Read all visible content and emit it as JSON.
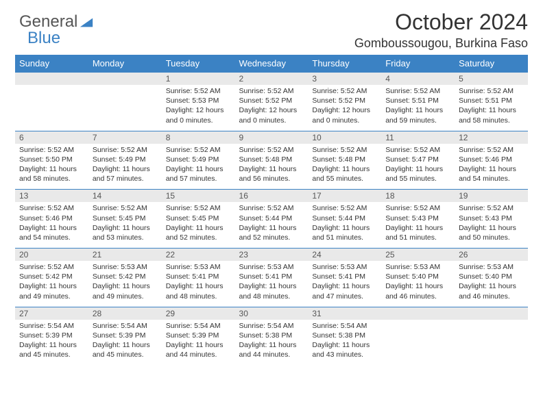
{
  "brand": {
    "part1": "General",
    "part2": "Blue",
    "logo_color": "#3b82c4"
  },
  "header": {
    "title": "October 2024",
    "location": "Gomboussougou, Burkina Faso"
  },
  "theme": {
    "header_bg": "#3b82c4",
    "header_fg": "#ffffff",
    "daynum_bg": "#e9e9e9",
    "border": "#3b82c4",
    "text": "#333333"
  },
  "calendar": {
    "type": "calendar-month",
    "columns": [
      "Sunday",
      "Monday",
      "Tuesday",
      "Wednesday",
      "Thursday",
      "Friday",
      "Saturday"
    ],
    "first_weekday_index": 2,
    "days": [
      {
        "n": "1",
        "sunrise": "5:52 AM",
        "sunset": "5:53 PM",
        "daylight": "12 hours and 0 minutes."
      },
      {
        "n": "2",
        "sunrise": "5:52 AM",
        "sunset": "5:52 PM",
        "daylight": "12 hours and 0 minutes."
      },
      {
        "n": "3",
        "sunrise": "5:52 AM",
        "sunset": "5:52 PM",
        "daylight": "12 hours and 0 minutes."
      },
      {
        "n": "4",
        "sunrise": "5:52 AM",
        "sunset": "5:51 PM",
        "daylight": "11 hours and 59 minutes."
      },
      {
        "n": "5",
        "sunrise": "5:52 AM",
        "sunset": "5:51 PM",
        "daylight": "11 hours and 58 minutes."
      },
      {
        "n": "6",
        "sunrise": "5:52 AM",
        "sunset": "5:50 PM",
        "daylight": "11 hours and 58 minutes."
      },
      {
        "n": "7",
        "sunrise": "5:52 AM",
        "sunset": "5:49 PM",
        "daylight": "11 hours and 57 minutes."
      },
      {
        "n": "8",
        "sunrise": "5:52 AM",
        "sunset": "5:49 PM",
        "daylight": "11 hours and 57 minutes."
      },
      {
        "n": "9",
        "sunrise": "5:52 AM",
        "sunset": "5:48 PM",
        "daylight": "11 hours and 56 minutes."
      },
      {
        "n": "10",
        "sunrise": "5:52 AM",
        "sunset": "5:48 PM",
        "daylight": "11 hours and 55 minutes."
      },
      {
        "n": "11",
        "sunrise": "5:52 AM",
        "sunset": "5:47 PM",
        "daylight": "11 hours and 55 minutes."
      },
      {
        "n": "12",
        "sunrise": "5:52 AM",
        "sunset": "5:46 PM",
        "daylight": "11 hours and 54 minutes."
      },
      {
        "n": "13",
        "sunrise": "5:52 AM",
        "sunset": "5:46 PM",
        "daylight": "11 hours and 54 minutes."
      },
      {
        "n": "14",
        "sunrise": "5:52 AM",
        "sunset": "5:45 PM",
        "daylight": "11 hours and 53 minutes."
      },
      {
        "n": "15",
        "sunrise": "5:52 AM",
        "sunset": "5:45 PM",
        "daylight": "11 hours and 52 minutes."
      },
      {
        "n": "16",
        "sunrise": "5:52 AM",
        "sunset": "5:44 PM",
        "daylight": "11 hours and 52 minutes."
      },
      {
        "n": "17",
        "sunrise": "5:52 AM",
        "sunset": "5:44 PM",
        "daylight": "11 hours and 51 minutes."
      },
      {
        "n": "18",
        "sunrise": "5:52 AM",
        "sunset": "5:43 PM",
        "daylight": "11 hours and 51 minutes."
      },
      {
        "n": "19",
        "sunrise": "5:52 AM",
        "sunset": "5:43 PM",
        "daylight": "11 hours and 50 minutes."
      },
      {
        "n": "20",
        "sunrise": "5:52 AM",
        "sunset": "5:42 PM",
        "daylight": "11 hours and 49 minutes."
      },
      {
        "n": "21",
        "sunrise": "5:53 AM",
        "sunset": "5:42 PM",
        "daylight": "11 hours and 49 minutes."
      },
      {
        "n": "22",
        "sunrise": "5:53 AM",
        "sunset": "5:41 PM",
        "daylight": "11 hours and 48 minutes."
      },
      {
        "n": "23",
        "sunrise": "5:53 AM",
        "sunset": "5:41 PM",
        "daylight": "11 hours and 48 minutes."
      },
      {
        "n": "24",
        "sunrise": "5:53 AM",
        "sunset": "5:41 PM",
        "daylight": "11 hours and 47 minutes."
      },
      {
        "n": "25",
        "sunrise": "5:53 AM",
        "sunset": "5:40 PM",
        "daylight": "11 hours and 46 minutes."
      },
      {
        "n": "26",
        "sunrise": "5:53 AM",
        "sunset": "5:40 PM",
        "daylight": "11 hours and 46 minutes."
      },
      {
        "n": "27",
        "sunrise": "5:54 AM",
        "sunset": "5:39 PM",
        "daylight": "11 hours and 45 minutes."
      },
      {
        "n": "28",
        "sunrise": "5:54 AM",
        "sunset": "5:39 PM",
        "daylight": "11 hours and 45 minutes."
      },
      {
        "n": "29",
        "sunrise": "5:54 AM",
        "sunset": "5:39 PM",
        "daylight": "11 hours and 44 minutes."
      },
      {
        "n": "30",
        "sunrise": "5:54 AM",
        "sunset": "5:38 PM",
        "daylight": "11 hours and 44 minutes."
      },
      {
        "n": "31",
        "sunrise": "5:54 AM",
        "sunset": "5:38 PM",
        "daylight": "11 hours and 43 minutes."
      }
    ]
  },
  "labels": {
    "sunrise": "Sunrise:",
    "sunset": "Sunset:",
    "daylight": "Daylight:"
  }
}
